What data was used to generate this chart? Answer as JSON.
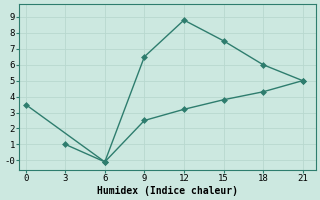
{
  "line1_x": [
    0,
    6,
    9,
    12,
    15,
    18,
    21
  ],
  "line1_y": [
    3.5,
    -0.1,
    6.5,
    8.8,
    7.5,
    6.0,
    5.0
  ],
  "line2_x": [
    3,
    6,
    9,
    12,
    15,
    18,
    21
  ],
  "line2_y": [
    1.0,
    -0.1,
    2.5,
    3.2,
    3.8,
    4.3,
    5.0
  ],
  "line_color": "#2e7d6e",
  "bg_color": "#cce8e0",
  "grid_color": "#b8d8cf",
  "xlabel": "Humidex (Indice chaleur)",
  "xticks": [
    0,
    3,
    6,
    9,
    12,
    15,
    18,
    21
  ],
  "ytick_vals": [
    0,
    1,
    2,
    3,
    4,
    5,
    6,
    7,
    8,
    9
  ],
  "ytick_labels": [
    "-0",
    "1",
    "2",
    "3",
    "4",
    "5",
    "6",
    "7",
    "8",
    "9"
  ],
  "xlim": [
    -0.5,
    22
  ],
  "ylim": [
    -0.6,
    9.8
  ],
  "xlabel_fontsize": 7,
  "tick_fontsize": 6.5,
  "marker_size": 3,
  "line_width": 1.0
}
